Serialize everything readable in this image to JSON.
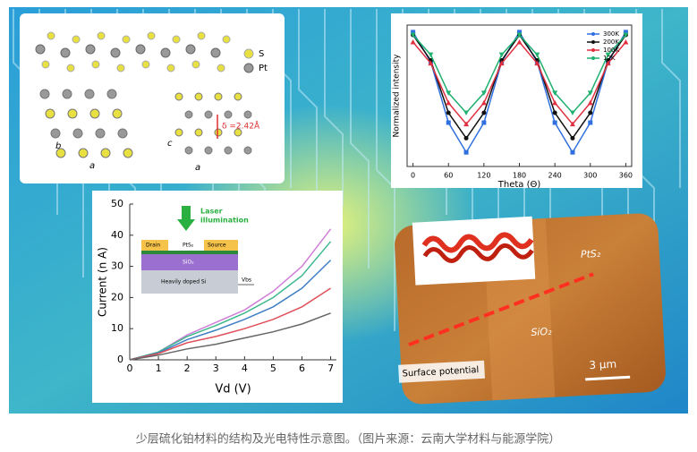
{
  "chart_data": [
    {
      "type": "line",
      "xlabel": "Vd (V)",
      "ylabel": "Current (n A)",
      "x": [
        0,
        1,
        2,
        3,
        4,
        5,
        6,
        7
      ],
      "xlim": [
        0,
        7.2
      ],
      "xticks": [
        0,
        1,
        2,
        3,
        4,
        5,
        6,
        7
      ],
      "ylim": [
        0,
        50
      ],
      "yticks": [
        0,
        10,
        20,
        30,
        40,
        50
      ],
      "series": [
        {
          "color": "#d07fd8",
          "values": [
            0,
            2.5,
            8,
            12,
            16,
            22,
            30,
            42
          ]
        },
        {
          "color": "#3cb98c",
          "values": [
            0,
            2.5,
            7.5,
            11,
            15,
            20,
            27,
            38
          ]
        },
        {
          "color": "#3f7fc4",
          "values": [
            0,
            2.2,
            6.5,
            9.5,
            13,
            17,
            23,
            32
          ]
        },
        {
          "color": "#e0505a",
          "values": [
            0,
            2,
            5.5,
            7.5,
            10,
            13,
            17,
            23
          ]
        },
        {
          "color": "#666666",
          "values": [
            0,
            1.5,
            3.5,
            5,
            7,
            9,
            11.5,
            15
          ]
        }
      ]
    },
    {
      "type": "line",
      "xlabel": "Theta (Θ)",
      "ylabel": "Normalized intensity",
      "x": [
        0,
        30,
        60,
        90,
        120,
        150,
        180,
        210,
        240,
        270,
        300,
        330,
        360
      ],
      "xlim": [
        -10,
        370
      ],
      "xticks": [
        0,
        60,
        120,
        180,
        240,
        300,
        360
      ],
      "ylim": [
        0,
        1
      ],
      "legend": "upper right",
      "series": [
        {
          "name": "300K",
          "color": "#2f6fe0",
          "marker": "square",
          "values": [
            0.95,
            0.74,
            0.31,
            0.1,
            0.31,
            0.74,
            0.95,
            0.74,
            0.31,
            0.1,
            0.31,
            0.74,
            0.95
          ]
        },
        {
          "name": "200K",
          "color": "#111111",
          "marker": "circle",
          "values": [
            0.93,
            0.75,
            0.38,
            0.2,
            0.38,
            0.75,
            0.93,
            0.75,
            0.38,
            0.2,
            0.38,
            0.75,
            0.93
          ]
        },
        {
          "name": "100K",
          "color": "#e03040",
          "marker": "triangle",
          "values": [
            0.88,
            0.73,
            0.45,
            0.3,
            0.45,
            0.73,
            0.88,
            0.73,
            0.45,
            0.3,
            0.45,
            0.73,
            0.88
          ]
        },
        {
          "name": "12K",
          "color": "#20b070",
          "marker": "triangle-down",
          "values": [
            0.93,
            0.79,
            0.52,
            0.38,
            0.52,
            0.79,
            0.93,
            0.79,
            0.52,
            0.38,
            0.52,
            0.79,
            0.93
          ]
        }
      ]
    }
  ],
  "structure": {
    "atoms": [
      "S",
      "Pt"
    ],
    "left_axes": [
      "b",
      "a"
    ],
    "right_axes": [
      "c",
      "a"
    ],
    "spacing": "δ =2.42Å"
  },
  "iv_inset": {
    "light": [
      "Laser",
      "illumination"
    ],
    "drain": "Drain",
    "channel": "PtS₂",
    "source": "Source",
    "oxide": "SiO₂",
    "substrate": "Heavily doped Si",
    "gate": "Vbs"
  },
  "afm": {
    "material": "PtS₂",
    "substrate": "SiO₂",
    "label": "Surface potential",
    "scale": "3 μm"
  },
  "caption": "少层硫化铂材料的结构及光电特性示意图。（图片来源：云南大学材料与能源学院）"
}
